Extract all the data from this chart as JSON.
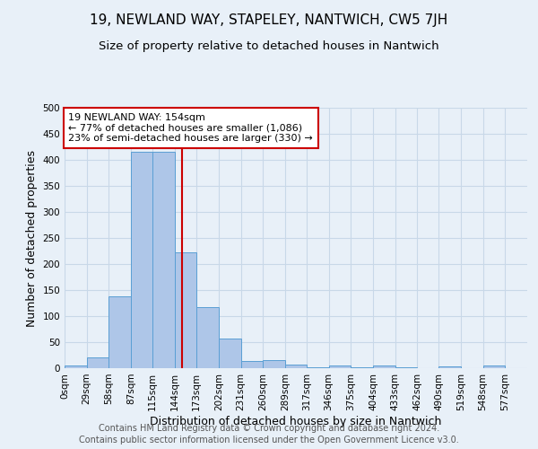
{
  "title": "19, NEWLAND WAY, STAPELEY, NANTWICH, CW5 7JH",
  "subtitle": "Size of property relative to detached houses in Nantwich",
  "xlabel": "Distribution of detached houses by size in Nantwich",
  "ylabel": "Number of detached properties",
  "bin_edges": [
    0,
    29,
    58,
    87,
    115,
    144,
    173,
    202,
    231,
    260,
    289,
    317,
    346,
    375,
    404,
    433,
    462,
    490,
    519,
    548,
    577,
    606
  ],
  "bar_heights": [
    5,
    20,
    138,
    415,
    415,
    222,
    118,
    57,
    13,
    15,
    7,
    2,
    5,
    1,
    5,
    1,
    0,
    4,
    0,
    5,
    0
  ],
  "bar_color": "#aec6e8",
  "bar_edge_color": "#5a9fd4",
  "property_line_x": 154,
  "property_line_color": "#cc0000",
  "annotation_text": "19 NEWLAND WAY: 154sqm\n← 77% of detached houses are smaller (1,086)\n23% of semi-detached houses are larger (330) →",
  "annotation_box_color": "#cc0000",
  "annotation_text_color": "#000000",
  "annotation_bg_color": "#ffffff",
  "ylim": [
    0,
    500
  ],
  "yticks": [
    0,
    50,
    100,
    150,
    200,
    250,
    300,
    350,
    400,
    450,
    500
  ],
  "tick_labels": [
    "0sqm",
    "29sqm",
    "58sqm",
    "87sqm",
    "115sqm",
    "144sqm",
    "173sqm",
    "202sqm",
    "231sqm",
    "260sqm",
    "289sqm",
    "317sqm",
    "346sqm",
    "375sqm",
    "404sqm",
    "433sqm",
    "462sqm",
    "490sqm",
    "519sqm",
    "548sqm",
    "577sqm"
  ],
  "footer1": "Contains HM Land Registry data © Crown copyright and database right 2024.",
  "footer2": "Contains public sector information licensed under the Open Government Licence v3.0.",
  "grid_color": "#c8d8e8",
  "bg_color": "#e8f0f8",
  "title_fontsize": 11,
  "subtitle_fontsize": 9.5,
  "axis_label_fontsize": 9,
  "tick_fontsize": 7.5,
  "annotation_fontsize": 8,
  "footer_fontsize": 7
}
